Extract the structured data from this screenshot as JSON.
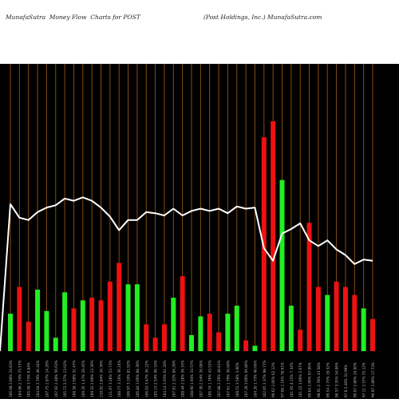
{
  "header": {
    "left_title": "MunafaSutra  Money Flow  Charts for POST",
    "right_title": "(Post Holdings, Inc.) MunafaSutra.com"
  },
  "colors": {
    "background": "#000000",
    "gridline": "#8a4b0f",
    "up_bar": "#22ee22",
    "down_bar": "#ee1111",
    "price_line": "#ffffff",
    "label_text": "#bbbbbb"
  },
  "chart_data": {
    "type": "bar",
    "title": "MunafaSutra  Money Flow  Charts for POST",
    "subtitle": "(Post Holdings, Inc.) MunafaSutra.com",
    "xlabel": "",
    "ylabel": "",
    "grid": true,
    "x": [
      "106.08 2.08% 24.83%",
      "104.96 2.74% 75.57%",
      "105.49 3.73% 0.84%",
      "104.04 2.79% 46.44%",
      "107.75 2.87% 14.26%",
      "107.92 2.48% 56.63%",
      "105.72 2.57% 13.02%",
      "108.58 1.68% 31.47%",
      "109.35 1.47% 29.45%",
      "109.32 2.09% 13.36%",
      "110.92 2.84% 34.39%",
      "111.67 3.28% 53.73%",
      "108.77 3.16% 36.24%",
      "106.97 3.19% 81.92%",
      "106.84 3.66% 88.36%",
      "106.03 3.47% 36.22%",
      "105.23 2.54% 96.16%",
      "104.14 2.63% 61.20%",
      "107.81 2.32% 84.28%",
      "108.44 2.28% 56.33%",
      "108.60 1.94% 33.57%",
      "107.30 2.54% 26.08%",
      "106.74 1.76% 43.52%",
      "107.88 2.29% 48.81%",
      "107.61 1.79% 30.60%",
      "108.51 3.58% 3.00%",
      "107.28 3.06% 66.86%",
      "104.20 1.75% 40.66%",
      "102.65 2.37% 98.77%",
      "99.62 2.05% 62.12%",
      "97.08 2.14% 78.61%",
      "101.92 4.15% 7.34%",
      "101.22 3.06% 2.67%",
      "99.64 2.06% 87.06%",
      "98.91 2.78% 43.58%",
      "99.54 2.73% 19.52%",
      "98.57 3.35% 54.06%",
      "97.8 2.40% 31.99%",
      "96.07 2.86% 24.60%",
      "97.11 2.57% 55.12%",
      "96.97 2.89% 17.73%"
    ],
    "series": [
      {
        "kind": "money_flow_bars",
        "values": [
          14,
          24,
          11,
          23,
          15,
          5,
          22,
          16,
          19,
          20,
          19,
          26,
          33,
          25,
          25,
          10,
          5,
          10,
          20,
          28,
          6,
          13,
          14,
          7,
          14,
          17,
          4,
          2,
          80,
          86,
          64,
          17,
          8,
          48,
          24,
          21,
          26,
          24,
          21,
          16,
          12
        ],
        "directions": [
          "up",
          "down",
          "down",
          "up",
          "up",
          "up",
          "up",
          "down",
          "up",
          "down",
          "down",
          "down",
          "down",
          "up",
          "up",
          "down",
          "down",
          "down",
          "up",
          "down",
          "up",
          "up",
          "down",
          "down",
          "up",
          "up",
          "down",
          "up",
          "down",
          "down",
          "up",
          "up",
          "down",
          "down",
          "down",
          "up",
          "down",
          "down",
          "down",
          "up",
          "down"
        ]
      },
      {
        "kind": "price_line",
        "values": [
          108.0,
          106.8,
          106.6,
          107.3,
          107.7,
          107.9,
          108.5,
          108.3,
          108.6,
          108.3,
          107.7,
          106.9,
          105.7,
          106.6,
          106.6,
          107.3,
          107.2,
          107.0,
          107.6,
          107.0,
          107.4,
          107.6,
          107.4,
          107.6,
          107.2,
          107.8,
          107.6,
          107.7,
          104.1,
          103.0,
          105.4,
          105.8,
          106.3,
          104.8,
          104.3,
          104.8,
          104.0,
          103.5,
          102.7,
          103.1,
          103.0
        ]
      }
    ],
    "ylim": [
      0,
      100
    ],
    "price_ylim": [
      95,
      119
    ]
  }
}
